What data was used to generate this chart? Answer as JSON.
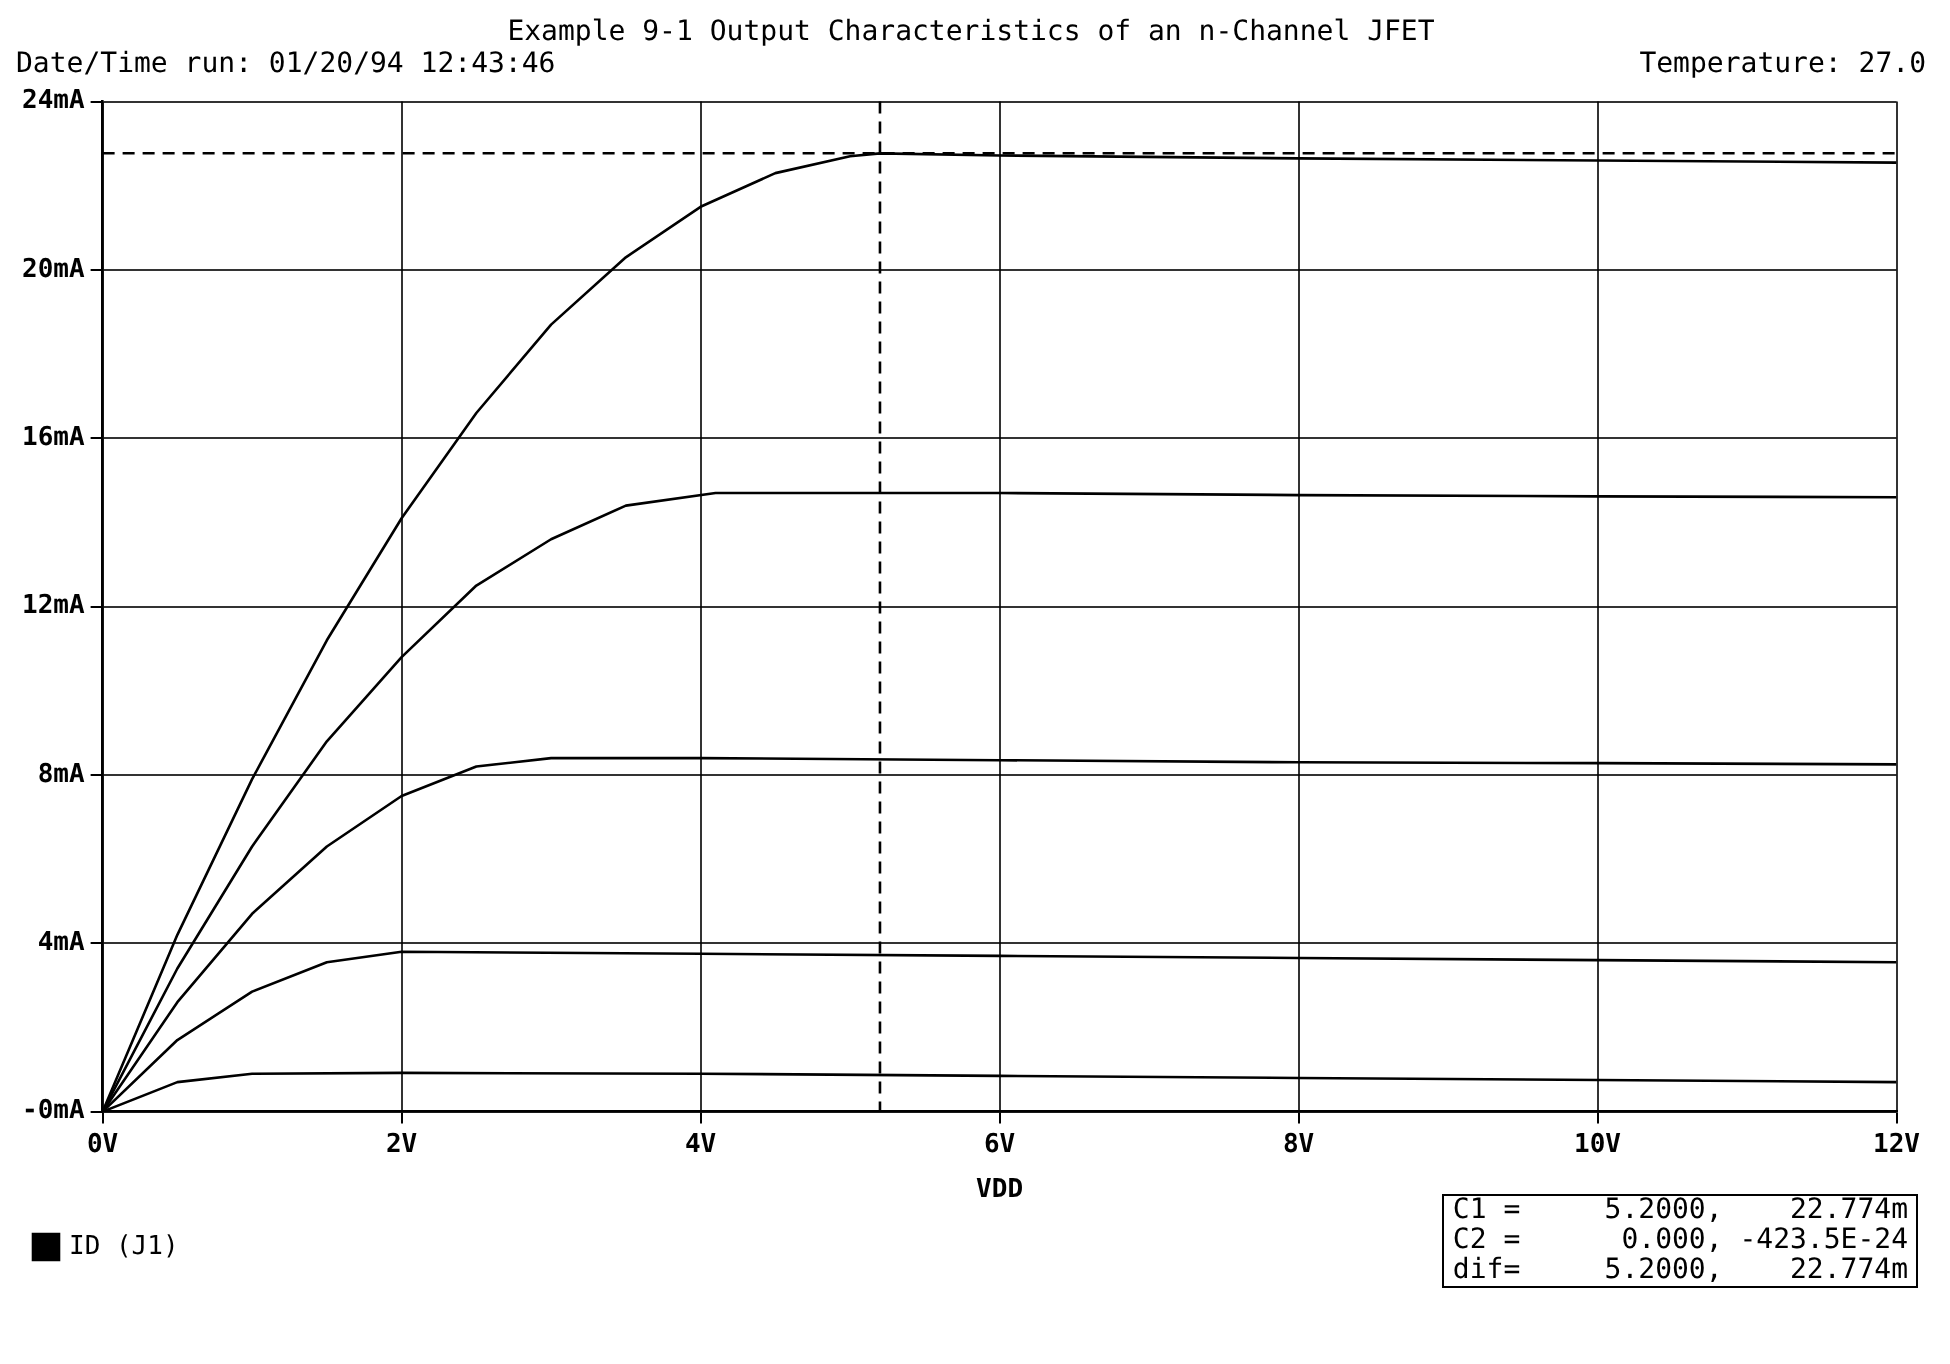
{
  "chart_data": {
    "type": "line",
    "title": "Example 9-1    Output Characteristics of an n-Channel JFET",
    "xlabel": "VDD",
    "annotations": [
      "Date/Time run: 01/20/94  12:43:46",
      "Temperature: 27.0",
      "C1 =     5.2000,    22.774m",
      "C2 =      0.000, -423.5E-24",
      "dif=     5.2000,    22.774m"
    ],
    "series": [
      {
        "name": "ID (J1)",
        "color": "#000000",
        "x": [
          0,
          0.5,
          1,
          1.5,
          2,
          2.5,
          3,
          3.5,
          4,
          4.5,
          5,
          5.2,
          6,
          8,
          10,
          12
        ],
        "values": [
          0,
          4.2,
          7.9,
          11.2,
          14.1,
          16.6,
          18.7,
          20.3,
          21.5,
          22.3,
          22.7,
          22.77,
          22.72,
          22.65,
          22.6,
          22.55
        ]
      },
      {
        "color": "#000000",
        "x": [
          0,
          0.5,
          1,
          1.5,
          2,
          2.5,
          3,
          3.5,
          4.1,
          6,
          8,
          10,
          12
        ],
        "values": [
          0,
          3.4,
          6.3,
          8.8,
          10.8,
          12.5,
          13.6,
          14.4,
          14.7,
          14.7,
          14.65,
          14.62,
          14.6
        ]
      },
      {
        "color": "#000000",
        "x": [
          0,
          0.5,
          1,
          1.5,
          2,
          2.5,
          3,
          4,
          6,
          8,
          10,
          12
        ],
        "values": [
          0,
          2.6,
          4.7,
          6.3,
          7.5,
          8.2,
          8.4,
          8.4,
          8.35,
          8.3,
          8.28,
          8.25
        ]
      },
      {
        "color": "#000000",
        "x": [
          0,
          0.5,
          1,
          1.5,
          2,
          4,
          6,
          8,
          10,
          12
        ],
        "values": [
          0,
          1.7,
          2.85,
          3.55,
          3.8,
          3.75,
          3.7,
          3.65,
          3.6,
          3.55
        ]
      },
      {
        "color": "#000000",
        "x": [
          0,
          0.5,
          1,
          2,
          4,
          6,
          8,
          10,
          12
        ],
        "values": [
          0,
          0.7,
          0.9,
          0.92,
          0.9,
          0.85,
          0.8,
          0.75,
          0.7
        ]
      }
    ],
    "xlim": [
      0,
      12
    ],
    "xticks": [
      {
        "value": 0,
        "label": "0V"
      },
      {
        "value": 2,
        "label": "2V"
      },
      {
        "value": 4,
        "label": "4V"
      },
      {
        "value": 6,
        "label": "6V"
      },
      {
        "value": 8,
        "label": "8V"
      },
      {
        "value": 10,
        "label": "10V"
      },
      {
        "value": 12,
        "label": "12V"
      }
    ],
    "ylim": [
      0,
      24
    ],
    "yticks": [
      {
        "value": 0,
        "label": "-0mA"
      },
      {
        "value": 4,
        "label": "4mA"
      },
      {
        "value": 8,
        "label": "8mA"
      },
      {
        "value": 12,
        "label": "12mA"
      },
      {
        "value": 16,
        "label": "16mA"
      },
      {
        "value": 20,
        "label": "20mA"
      },
      {
        "value": 24,
        "label": "24mA"
      }
    ],
    "ref_lines": [
      {
        "axis": "y",
        "value": 22.774,
        "line_style": "dashed"
      },
      {
        "axis": "x",
        "value": 5.2,
        "line_style": "dashed"
      }
    ],
    "grid": true,
    "legend": "bottom left",
    "marker": "none",
    "line_style": "solid"
  }
}
